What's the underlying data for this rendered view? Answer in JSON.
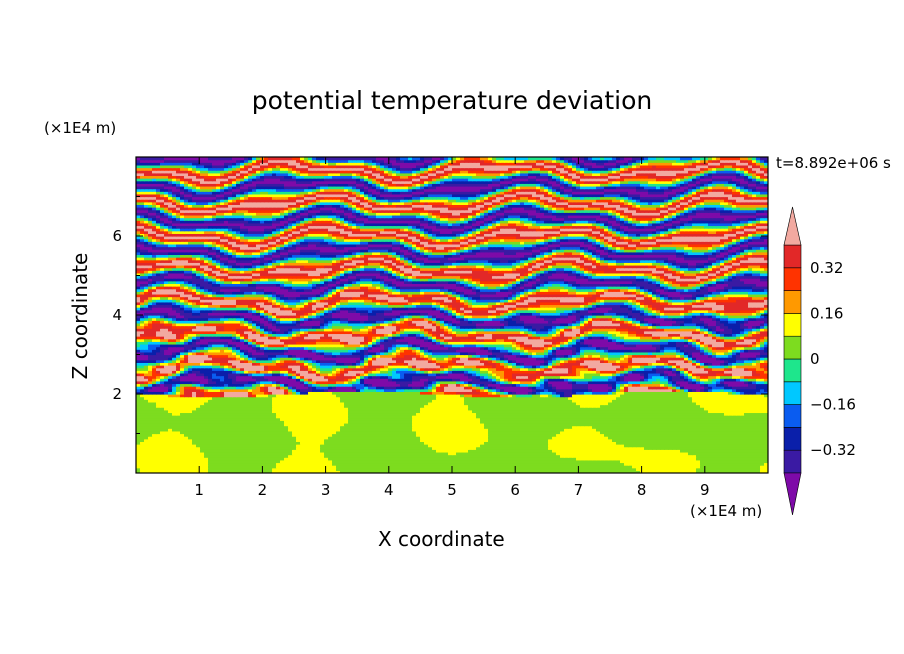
{
  "chart_data": {
    "type": "heatmap",
    "title": "potential temperature deviation",
    "xlabel": "X coordinate",
    "ylabel": "Z coordinate",
    "x_unit": "(×1E4 m)",
    "z_unit": "(×1E4 m)",
    "time_label": "t=8.892e+06 s",
    "xlim": [
      0,
      10
    ],
    "ylim": [
      0,
      8
    ],
    "x_ticks": [
      "1",
      "2",
      "3",
      "4",
      "5",
      "6",
      "7",
      "8",
      "9"
    ],
    "y_ticks": [
      "2",
      "4",
      "6"
    ],
    "colorbar": {
      "labels": [
        "0.32",
        "0.16",
        "0",
        "−0.16",
        "−0.32"
      ],
      "label_values": [
        0.32,
        0.16,
        0,
        -0.16,
        -0.32
      ],
      "levels": [
        -0.4,
        -0.32,
        -0.24,
        -0.16,
        -0.08,
        0,
        0.08,
        0.16,
        0.24,
        0.32,
        0.4
      ],
      "colors": [
        "#7e0aa8",
        "#3a1aa3",
        "#0a1faa",
        "#0a5cf0",
        "#00c8ff",
        "#1ee68c",
        "#7ddc1f",
        "#ffff00",
        "#ff9900",
        "#ff3300",
        "#e22828",
        "#f2a9a0"
      ],
      "extend": "both"
    },
    "description_values": {
      "lower_layer_z_range": [
        0,
        2
      ],
      "lower_layer_values": [
        0,
        0.08
      ],
      "upper_layer_z_range": [
        2,
        8
      ],
      "upper_layer_extremes": [
        -0.4,
        0.4
      ]
    }
  }
}
